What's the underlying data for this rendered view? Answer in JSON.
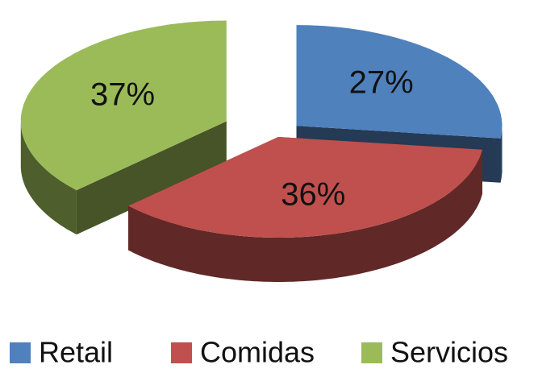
{
  "chart_data": {
    "type": "pie3d",
    "categories": [
      "Retail",
      "Comidas",
      "Servicios"
    ],
    "values": [
      27,
      36,
      37
    ],
    "value_labels": [
      "27%",
      "36%",
      "37%"
    ],
    "colors": [
      "#4f81bd",
      "#c0504d",
      "#9bbb59"
    ],
    "legend": "bottom"
  }
}
